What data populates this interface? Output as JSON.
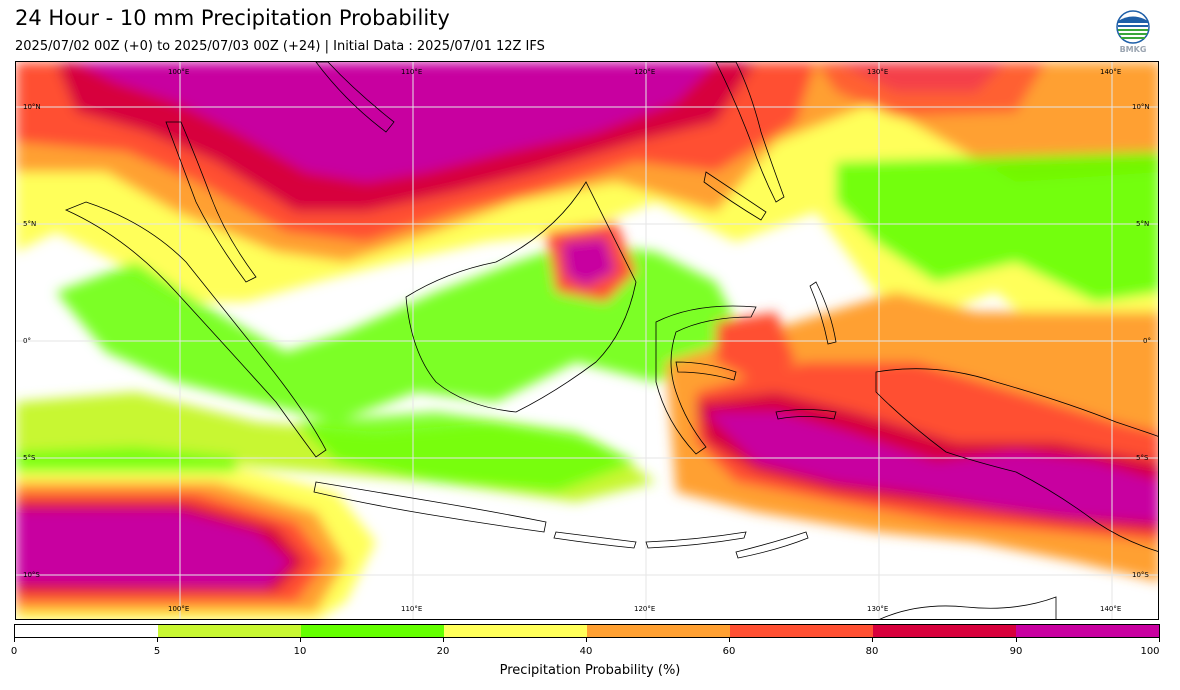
{
  "title": "24 Hour - 10 mm Precipitation Probability",
  "subtitle": "2025/07/02 00Z (+0) to 2025/07/03 00Z (+24) | Initial Data : 2025/07/01 12Z IFS",
  "logo_text": "BMKG",
  "map": {
    "lon_labels_top": [
      "100°E",
      "110°E",
      "120°E",
      "130°E",
      "140°E"
    ],
    "lon_labels_bottom": [
      "100°E",
      "110°E",
      "120°E",
      "130°E",
      "140°E"
    ],
    "lat_labels_left": [
      "10°N",
      "5°N",
      "0°",
      "5°S",
      "10°S"
    ],
    "lat_labels_right": [
      "10°N",
      "5°N",
      "0°",
      "5°S",
      "10°S"
    ]
  },
  "colors": {
    "c0_5": "#ffffff",
    "c5_10": "#c8f732",
    "c10_20": "#64ff00",
    "c20_40": "#ffff5a",
    "c40_60": "#ffa032",
    "c60_80": "#ff5032",
    "c80_90": "#d7003c",
    "c90_100": "#c800a0"
  },
  "colorbar": {
    "ticks": [
      "0",
      "5",
      "10",
      "20",
      "40",
      "60",
      "80",
      "90",
      "100"
    ],
    "label": "Precipitation Probability (%)"
  }
}
